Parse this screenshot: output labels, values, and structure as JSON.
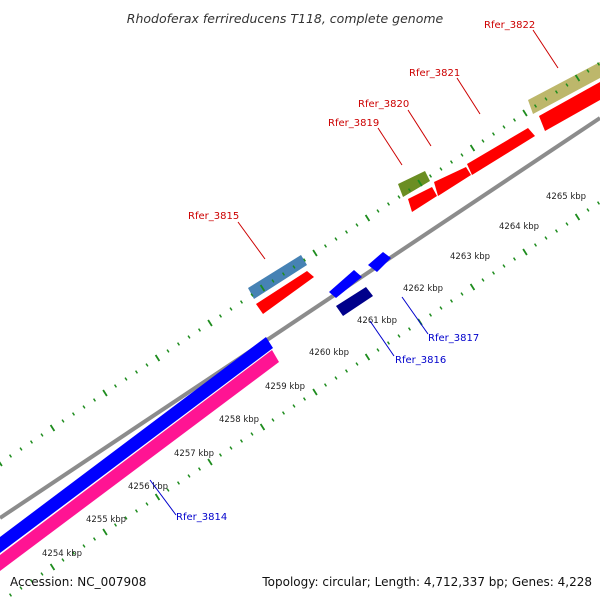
{
  "title": "Rhodoferax ferrireducens T118, complete genome",
  "footer": {
    "accession": "Accession: NC_007908",
    "topology": "Topology: circular; Length: 4,712,337 bp; Genes: 4,228"
  },
  "colors": {
    "backbone": "#8c8c8c",
    "tick_dot": "#1e8c1e",
    "forward_label": "#cc0000",
    "reverse_label": "#0000cc"
  },
  "ticks": [
    "4254 kbp",
    "4255 kbp",
    "4256 kbp",
    "4257 kbp",
    "4258 kbp",
    "4259 kbp",
    "4260 kbp",
    "4261 kbp",
    "4262 kbp",
    "4263 kbp",
    "4264 kbp",
    "4265 kbp"
  ],
  "gene_labels": [
    "Rfer_3822",
    "Rfer_3821",
    "Rfer_3820",
    "Rfer_3819",
    "Rfer_3815",
    "Rfer_3817",
    "Rfer_3816",
    "Rfer_3814"
  ],
  "features": [
    {
      "name": "rfer-3822-cog-bar",
      "color": "#bdb76b"
    },
    {
      "name": "rfer-3819-cog-bar",
      "color": "#6b8e23"
    },
    {
      "name": "rfer-3815-cog-bar",
      "color": "#4682b4"
    },
    {
      "name": "forward-cds",
      "color": "#ff0000"
    },
    {
      "name": "reverse-cds",
      "color": "#0000ff"
    },
    {
      "name": "reverse-cds-dark",
      "color": "#00008b"
    },
    {
      "name": "pink-track",
      "color": "#ff1493"
    }
  ]
}
